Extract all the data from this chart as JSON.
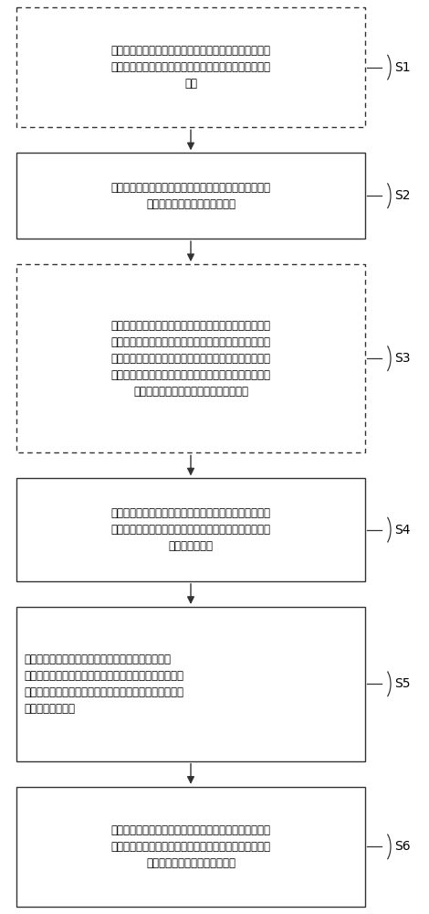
{
  "background_color": "#ffffff",
  "box_border_color": "#333333",
  "box_fill_color": "#ffffff",
  "arrow_color": "#333333",
  "label_color": "#000000",
  "font_size": 8.5,
  "label_font_size": 10,
  "steps": [
    {
      "id": "S1",
      "label": "S1",
      "text": "选取岩心，其中所述岩心的孔隙度、渗透率和孔隙结构与\n待开发地层的储集层的岩心的孔隙度、渗透率和孔隙结构\n相同",
      "border_style": "dashed",
      "text_align": "center",
      "line_count": 3.5
    },
    {
      "id": "S2",
      "label": "S2",
      "text": "对所述岩心进行预处理，以使所述岩心的含水状态与待开\n发地层的储集层的含水状态相同",
      "border_style": "solid",
      "text_align": "center",
      "line_count": 2.5
    },
    {
      "id": "S3",
      "label": "S3",
      "text": "将所述岩心放置于岩心夹持器中，其中所述岩心夹持器具\n有第一进口端、第二进口端和出口端，所述第一进口端能\n用于对所述岩心进行加围压，所述第二进口端能用于对所\n述岩心进行充注气体，所述出口端能用于充注时密封所述\n岩心和充注完成时释放所述岩心内的气体",
      "border_style": "dashed",
      "text_align": "center",
      "line_count": 5.5
    },
    {
      "id": "S4",
      "label": "S4",
      "text": "通过所述岩心夹持器的所述第一进口端对所述岩心施加大\n小与所述岩心在待开发地层的地层状态下承受的上覆岩层\n压力相同的围压",
      "border_style": "solid",
      "text_align": "center",
      "line_count": 3.0
    },
    {
      "id": "S5",
      "label": "S5",
      "text": "在预定基准压力的基础上按照预定规则增加后得到当\n前充注压力；用高压气源按照所述当前充注压力向所述岩\n心内充注气体直至所述岩心内气水达到平衡的状态，测量\n所述出口端的压力",
      "border_style": "solid",
      "text_align": "left",
      "line_count": 4.5
    },
    {
      "id": "S6",
      "label": "S6",
      "text": "当所述出口端的压力与所述第二进口端的压力相同时，根\n据所述出口端的压力得出起始充注压力，所述起始充注压\n力为所述岩心能进行驱替的压力",
      "border_style": "solid",
      "text_align": "center",
      "line_count": 3.5
    }
  ]
}
